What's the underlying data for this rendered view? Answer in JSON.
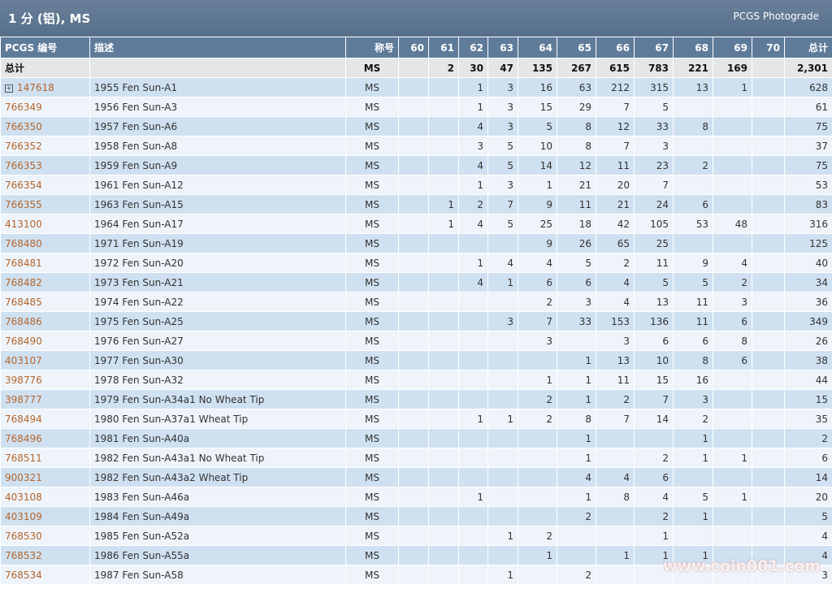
{
  "header": {
    "title": "1 分 (铝), MS",
    "link": "PCGS Photograde"
  },
  "table": {
    "columns": [
      "PCGS 编号",
      "描述",
      "称号",
      "60",
      "61",
      "62",
      "63",
      "64",
      "65",
      "66",
      "67",
      "68",
      "69",
      "70",
      "总计"
    ],
    "total": [
      "总计",
      null,
      "MS",
      null,
      "2",
      "30",
      "47",
      "135",
      "267",
      "615",
      "783",
      "221",
      "169",
      null,
      "2,301"
    ],
    "rows": [
      [
        "147618",
        "1955 Fen Sun-A1",
        "MS",
        null,
        null,
        "1",
        "3",
        "16",
        "63",
        "212",
        "315",
        "13",
        "1",
        null,
        "628"
      ],
      [
        "766349",
        "1956 Fen Sun-A3",
        "MS",
        null,
        null,
        "1",
        "3",
        "15",
        "29",
        "7",
        "5",
        null,
        null,
        null,
        "61"
      ],
      [
        "766350",
        "1957 Fen Sun-A6",
        "MS",
        null,
        null,
        "4",
        "3",
        "5",
        "8",
        "12",
        "33",
        "8",
        null,
        null,
        "75"
      ],
      [
        "766352",
        "1958 Fen Sun-A8",
        "MS",
        null,
        null,
        "3",
        "5",
        "10",
        "8",
        "7",
        "3",
        null,
        null,
        null,
        "37"
      ],
      [
        "766353",
        "1959 Fen Sun-A9",
        "MS",
        null,
        null,
        "4",
        "5",
        "14",
        "12",
        "11",
        "23",
        "2",
        null,
        null,
        "75"
      ],
      [
        "766354",
        "1961 Fen Sun-A12",
        "MS",
        null,
        null,
        "1",
        "3",
        "1",
        "21",
        "20",
        "7",
        null,
        null,
        null,
        "53"
      ],
      [
        "766355",
        "1963 Fen Sun-A15",
        "MS",
        null,
        "1",
        "2",
        "7",
        "9",
        "11",
        "21",
        "24",
        "6",
        null,
        null,
        "83"
      ],
      [
        "413100",
        "1964 Fen Sun-A17",
        "MS",
        null,
        "1",
        "4",
        "5",
        "25",
        "18",
        "42",
        "105",
        "53",
        "48",
        null,
        "316"
      ],
      [
        "768480",
        "1971 Fen Sun-A19",
        "MS",
        null,
        null,
        null,
        null,
        "9",
        "26",
        "65",
        "25",
        null,
        null,
        null,
        "125"
      ],
      [
        "768481",
        "1972 Fen Sun-A20",
        "MS",
        null,
        null,
        "1",
        "4",
        "4",
        "5",
        "2",
        "11",
        "9",
        "4",
        null,
        "40"
      ],
      [
        "768482",
        "1973 Fen Sun-A21",
        "MS",
        null,
        null,
        "4",
        "1",
        "6",
        "6",
        "4",
        "5",
        "5",
        "2",
        null,
        "34"
      ],
      [
        "768485",
        "1974 Fen Sun-A22",
        "MS",
        null,
        null,
        null,
        null,
        "2",
        "3",
        "4",
        "13",
        "11",
        "3",
        null,
        "36"
      ],
      [
        "768486",
        "1975 Fen Sun-A25",
        "MS",
        null,
        null,
        null,
        "3",
        "7",
        "33",
        "153",
        "136",
        "11",
        "6",
        null,
        "349"
      ],
      [
        "768490",
        "1976 Fen Sun-A27",
        "MS",
        null,
        null,
        null,
        null,
        "3",
        null,
        "3",
        "6",
        "6",
        "8",
        null,
        "26"
      ],
      [
        "403107",
        "1977 Fen Sun-A30",
        "MS",
        null,
        null,
        null,
        null,
        null,
        "1",
        "13",
        "10",
        "8",
        "6",
        null,
        "38"
      ],
      [
        "398776",
        "1978 Fen Sun-A32",
        "MS",
        null,
        null,
        null,
        null,
        "1",
        "1",
        "11",
        "15",
        "16",
        null,
        null,
        "44"
      ],
      [
        "398777",
        "1979 Fen Sun-A34a1 No Wheat Tip",
        "MS",
        null,
        null,
        null,
        null,
        "2",
        "1",
        "2",
        "7",
        "3",
        null,
        null,
        "15"
      ],
      [
        "768494",
        "1980 Fen Sun-A37a1 Wheat Tip",
        "MS",
        null,
        null,
        "1",
        "1",
        "2",
        "8",
        "7",
        "14",
        "2",
        null,
        null,
        "35"
      ],
      [
        "768496",
        "1981 Fen Sun-A40a",
        "MS",
        null,
        null,
        null,
        null,
        null,
        "1",
        null,
        null,
        "1",
        null,
        null,
        "2"
      ],
      [
        "768511",
        "1982 Fen Sun-A43a1 No Wheat Tip",
        "MS",
        null,
        null,
        null,
        null,
        null,
        "1",
        null,
        "2",
        "1",
        "1",
        null,
        "6"
      ],
      [
        "900321",
        "1982 Fen Sun-A43a2 Wheat Tip",
        "MS",
        null,
        null,
        null,
        null,
        null,
        "4",
        "4",
        "6",
        null,
        null,
        null,
        "14"
      ],
      [
        "403108",
        "1983 Fen Sun-A46a",
        "MS",
        null,
        null,
        "1",
        null,
        null,
        "1",
        "8",
        "4",
        "5",
        "1",
        null,
        "20"
      ],
      [
        "403109",
        "1984 Fen Sun-A49a",
        "MS",
        null,
        null,
        null,
        null,
        null,
        "2",
        null,
        "2",
        "1",
        null,
        null,
        "5"
      ],
      [
        "768530",
        "1985 Fen Sun-A52a",
        "MS",
        null,
        null,
        null,
        "1",
        "2",
        null,
        null,
        "1",
        null,
        null,
        null,
        "4"
      ],
      [
        "768532",
        "1986 Fen Sun-A55a",
        "MS",
        null,
        null,
        null,
        null,
        "1",
        null,
        "1",
        "1",
        "1",
        null,
        null,
        "4"
      ],
      [
        "768534",
        "1987 Fen Sun-A58",
        "MS",
        null,
        null,
        null,
        "1",
        null,
        "2",
        null,
        null,
        null,
        null,
        null,
        "3"
      ]
    ]
  },
  "watermark": "www.coin001.com"
}
